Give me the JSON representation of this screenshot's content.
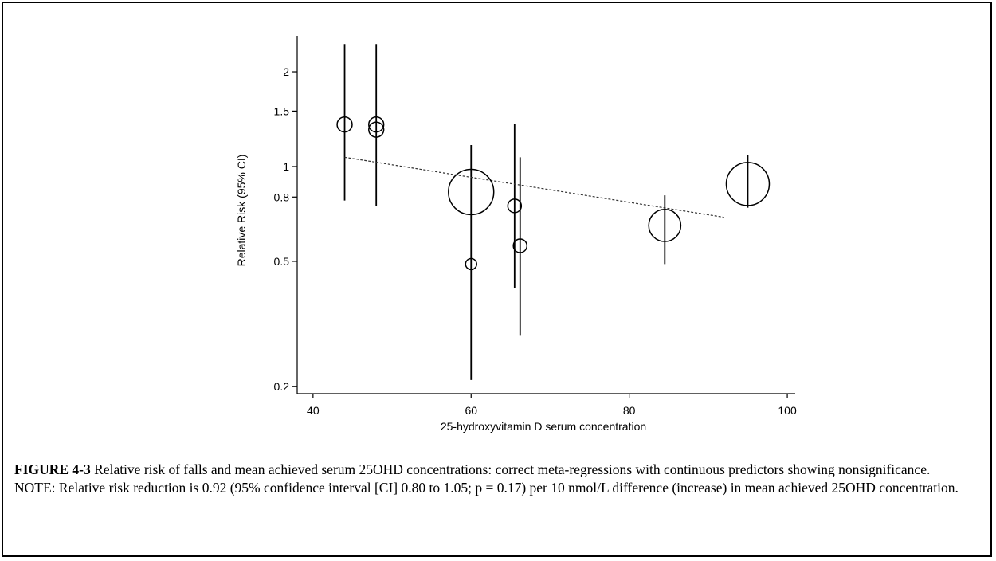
{
  "chart_data": {
    "type": "scatter",
    "subtype": "meta-regression bubble plot with 95% CI bars and fitted line",
    "xlabel": "25-hydroxyvitamin D serum concentration",
    "ylabel": "Relative Risk (95% CI)",
    "xlim": [
      38,
      101
    ],
    "ylim": [
      0.19,
      2.6
    ],
    "y_scale": "log",
    "x_ticks": [
      40,
      60,
      80,
      100
    ],
    "x_tick_labels": [
      "40",
      "60",
      "80",
      "100"
    ],
    "y_ticks": [
      0.2,
      0.5,
      0.8,
      1,
      1.5,
      2
    ],
    "y_tick_labels": [
      "0.2",
      "0.5",
      "0.8",
      "1",
      "1.5",
      "2"
    ],
    "grid": false,
    "points": [
      {
        "x": 44,
        "y": 1.36,
        "ci_low": 0.78,
        "ci_high": 2.45,
        "weight": 1.1
      },
      {
        "x": 48,
        "y": 1.36,
        "ci_low": 0.75,
        "ci_high": 2.45,
        "weight": 1.1
      },
      {
        "x": 48,
        "y": 1.31,
        "ci_low": 0.75,
        "ci_high": 2.45,
        "weight": 1.1
      },
      {
        "x": 60,
        "y": 0.83,
        "ci_low": 0.21,
        "ci_high": 1.17,
        "weight": 10
      },
      {
        "x": 60,
        "y": 0.49,
        "ci_low": 0.21,
        "ci_high": 1.17,
        "weight": 0.6
      },
      {
        "x": 65.5,
        "y": 0.75,
        "ci_low": 0.41,
        "ci_high": 1.37,
        "weight": 0.9
      },
      {
        "x": 66.2,
        "y": 0.56,
        "ci_low": 0.29,
        "ci_high": 1.07,
        "weight": 0.9
      },
      {
        "x": 84.5,
        "y": 0.65,
        "ci_low": 0.49,
        "ci_high": 0.81,
        "weight": 5
      },
      {
        "x": 95,
        "y": 0.88,
        "ci_low": 0.74,
        "ci_high": 1.09,
        "weight": 9
      }
    ],
    "fit_line": {
      "style": "dashed",
      "x": [
        44,
        92
      ],
      "y": [
        1.07,
        0.69
      ]
    }
  },
  "caption": {
    "figure_label": "FIGURE 4-3",
    "figure_text": " Relative risk of falls and mean achieved serum 25OHD concentrations: correct meta-regressions with continuous predictors showing nonsignificance.",
    "note": "NOTE: Relative risk reduction is 0.92 (95% confidence interval [CI] 0.80 to 1.05; p = 0.17) per 10 nmol/L difference (increase) in mean achieved 25OHD concentration."
  }
}
